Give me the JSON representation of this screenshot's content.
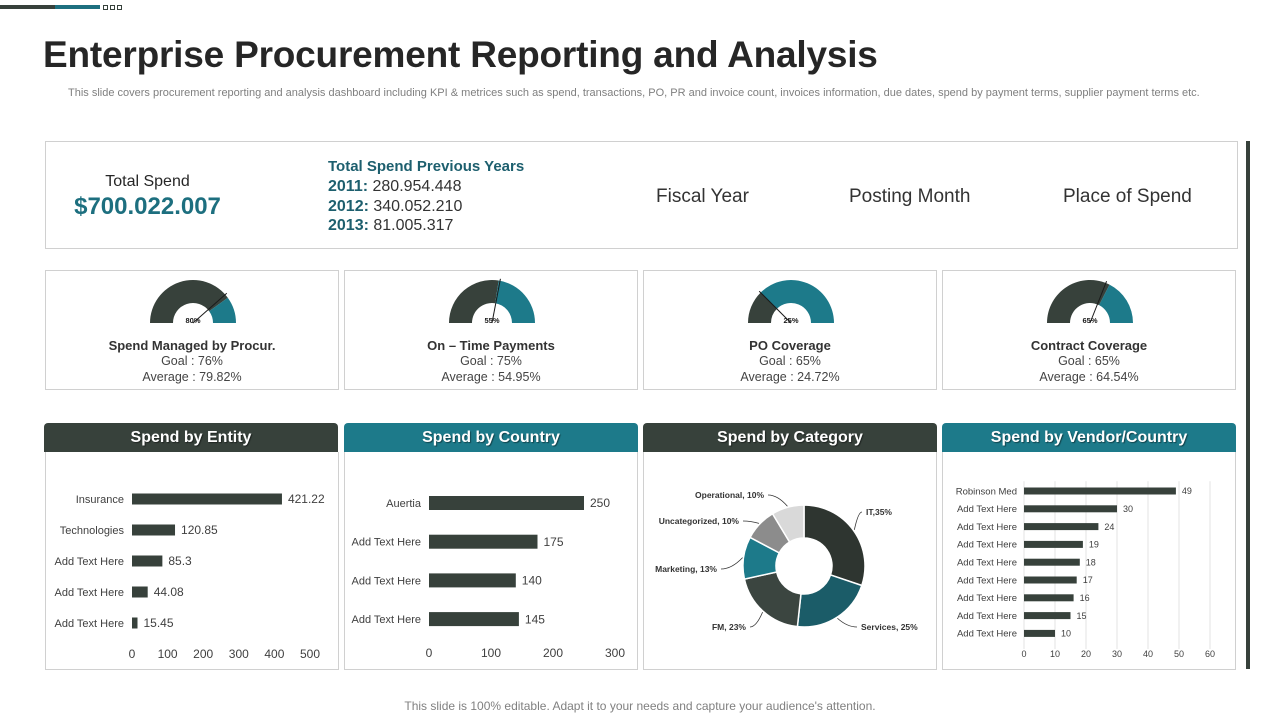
{
  "header": {
    "title": "Enterprise Procurement Reporting and Analysis",
    "subtitle": "This slide covers procurement reporting and analysis dashboard including KPI & metrices such as spend, transactions, PO, PR and invoice count, invoices information, due dates, spend by payment terms, supplier payment terms etc."
  },
  "summary": {
    "total_label": "Total Spend",
    "total_value": "$700.022.007",
    "prev_title": "Total Spend Previous Years",
    "prev": [
      {
        "year": "2011:",
        "value": " 280.954.448"
      },
      {
        "year": "2012:",
        "value": " 340.052.210"
      },
      {
        "year": "2013:",
        "value": " 81.005.317"
      }
    ],
    "filters": [
      "Fiscal Year",
      "Posting Month",
      "Place of Spend"
    ]
  },
  "kpis": [
    {
      "name": "Spend Managed by Procur.",
      "goal": "Goal  : 76%",
      "average": "Average  : 79.82%",
      "pct_label": "80%",
      "fill_pct": 80,
      "needle_pct": 77
    },
    {
      "name": "On – Time Payments",
      "goal": "Goal  : 75%",
      "average": "Average  : 54.95%",
      "pct_label": "55%",
      "fill_pct": 55,
      "needle_pct": 56
    },
    {
      "name": "PO Coverage",
      "goal": "Goal  : 65%",
      "average": "Average  : 24.72%",
      "pct_label": "25%",
      "fill_pct": 25,
      "needle_pct": 25
    },
    {
      "name": "Contract Coverage",
      "goal": "Goal  : 65%",
      "average": "Average  : 64.54%",
      "pct_label": "65%",
      "fill_pct": 65,
      "needle_pct": 62
    }
  ],
  "colors": {
    "dark": "#37413b",
    "teal": "#1d7a8a",
    "teal_dark": "#1b5c68",
    "gray": "#8c8c8c",
    "light_gray": "#d9d9d9"
  },
  "chart_data": [
    {
      "type": "bar",
      "orientation": "horizontal",
      "title": "Spend by Entity",
      "categories": [
        "Insurance",
        "Technologies",
        "Add Text Here",
        "Add Text Here",
        "Add Text Here"
      ],
      "values": [
        421.22,
        120.85,
        85.3,
        44.08,
        15.45
      ],
      "value_labels": [
        "421.22",
        "120.85",
        "85.3",
        "44.08",
        "15.45"
      ],
      "xlim": [
        0,
        500
      ],
      "ticks": [
        "0",
        "100",
        "200",
        "300",
        "400",
        "500"
      ]
    },
    {
      "type": "bar",
      "orientation": "horizontal",
      "title": "Spend by Country",
      "categories": [
        "Auertia",
        "Add Text Here",
        "Add Text Here",
        "Add Text Here"
      ],
      "values": [
        250,
        175,
        140,
        145
      ],
      "value_labels": [
        "250",
        "175",
        "140",
        "145"
      ],
      "xlim": [
        0,
        300
      ],
      "ticks": [
        "0",
        "100",
        "200",
        "300"
      ]
    },
    {
      "type": "pie",
      "donut": true,
      "title": "Spend by Category",
      "slices": [
        {
          "label": "IT,35%",
          "value": 35
        },
        {
          "label": "Services, 25%",
          "value": 25
        },
        {
          "label": "FM, 23%",
          "value": 23
        },
        {
          "label": "Marketing, 13%",
          "value": 13
        },
        {
          "label": "Uncategorized, 10%",
          "value": 10
        },
        {
          "label": "Operational, 10%",
          "value": 10
        }
      ]
    },
    {
      "type": "bar",
      "orientation": "horizontal",
      "title": "Spend by Vendor/Country",
      "categories": [
        "Robinson Med",
        "Add Text Here",
        "Add Text Here",
        "Add Text Here",
        "Add Text Here",
        "Add Text Here",
        "Add Text Here",
        "Add Text Here",
        "Add Text Here"
      ],
      "values": [
        49,
        30,
        24,
        19,
        18,
        17,
        16,
        15,
        10
      ],
      "value_labels": [
        "49",
        "30",
        "24",
        "19",
        "18",
        "17",
        "16",
        "15",
        "10"
      ],
      "xlim": [
        0,
        60
      ],
      "ticks": [
        "0",
        "10",
        "20",
        "30",
        "40",
        "50",
        "60"
      ]
    }
  ],
  "footer": "This slide is 100% editable. Adapt it to your needs and capture your audience's attention."
}
